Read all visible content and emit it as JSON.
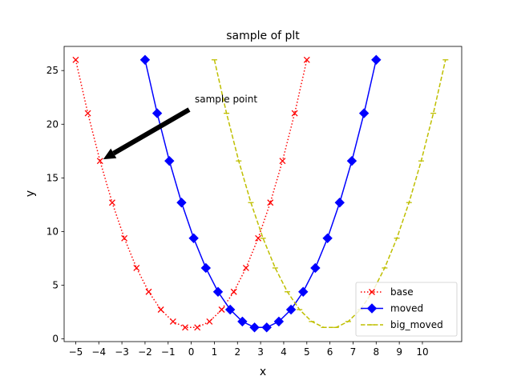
{
  "chart_data": {
    "type": "line",
    "title": "sample of plt",
    "xlabel": "x",
    "ylabel": "y",
    "xlim": [
      -5.5,
      11.7
    ],
    "ylim": [
      -0.25,
      27.25
    ],
    "xticks": [
      -5,
      -4,
      -3,
      -2,
      -1,
      0,
      1,
      2,
      3,
      4,
      5,
      6,
      7,
      8,
      9,
      10
    ],
    "yticks": [
      0,
      5,
      10,
      15,
      20,
      25
    ],
    "grid": false,
    "legend_position": "lower right",
    "annotation": {
      "text": "sample point",
      "point": [
        -3.947,
        16.58
      ],
      "text_position": [
        0,
        22
      ]
    },
    "series": [
      {
        "name": "base",
        "color": "#ff0000",
        "linestyle": "dotted",
        "marker": "x",
        "x": [
          -5,
          -4.474,
          -3.947,
          -3.421,
          -2.895,
          -2.368,
          -1.842,
          -1.316,
          -0.789,
          -0.263,
          0.263,
          0.789,
          1.316,
          1.842,
          2.368,
          2.895,
          3.421,
          3.947,
          4.474,
          5
        ],
        "y": [
          26,
          21.02,
          16.58,
          12.7,
          9.38,
          6.61,
          4.39,
          2.73,
          1.62,
          1.07,
          1.07,
          1.62,
          2.73,
          4.39,
          6.61,
          9.38,
          12.7,
          16.58,
          21.02,
          26
        ]
      },
      {
        "name": "moved",
        "color": "#0000ff",
        "linestyle": "solid",
        "marker": "D",
        "x": [
          -2,
          -1.474,
          -0.947,
          -0.421,
          0.105,
          0.632,
          1.158,
          1.684,
          2.211,
          2.737,
          3.263,
          3.789,
          4.316,
          4.842,
          5.368,
          5.895,
          6.421,
          6.947,
          7.474,
          8
        ],
        "y": [
          26,
          21.02,
          16.58,
          12.7,
          9.38,
          6.61,
          4.39,
          2.73,
          1.62,
          1.07,
          1.07,
          1.62,
          2.73,
          4.39,
          6.61,
          9.38,
          12.7,
          16.58,
          21.02,
          26
        ]
      },
      {
        "name": "big_moved",
        "color": "#bfbf00",
        "linestyle": "dashed",
        "marker": "tick",
        "x": [
          1,
          1.526,
          2.053,
          2.579,
          3.105,
          3.632,
          4.158,
          4.684,
          5.211,
          5.737,
          6.263,
          6.789,
          7.316,
          7.842,
          8.368,
          8.895,
          9.421,
          9.947,
          10.474,
          11
        ],
        "y": [
          26,
          21.02,
          16.58,
          12.7,
          9.38,
          6.61,
          4.39,
          2.73,
          1.62,
          1.07,
          1.07,
          1.62,
          2.73,
          4.39,
          6.61,
          9.38,
          12.7,
          16.58,
          21.02,
          26
        ]
      }
    ]
  }
}
